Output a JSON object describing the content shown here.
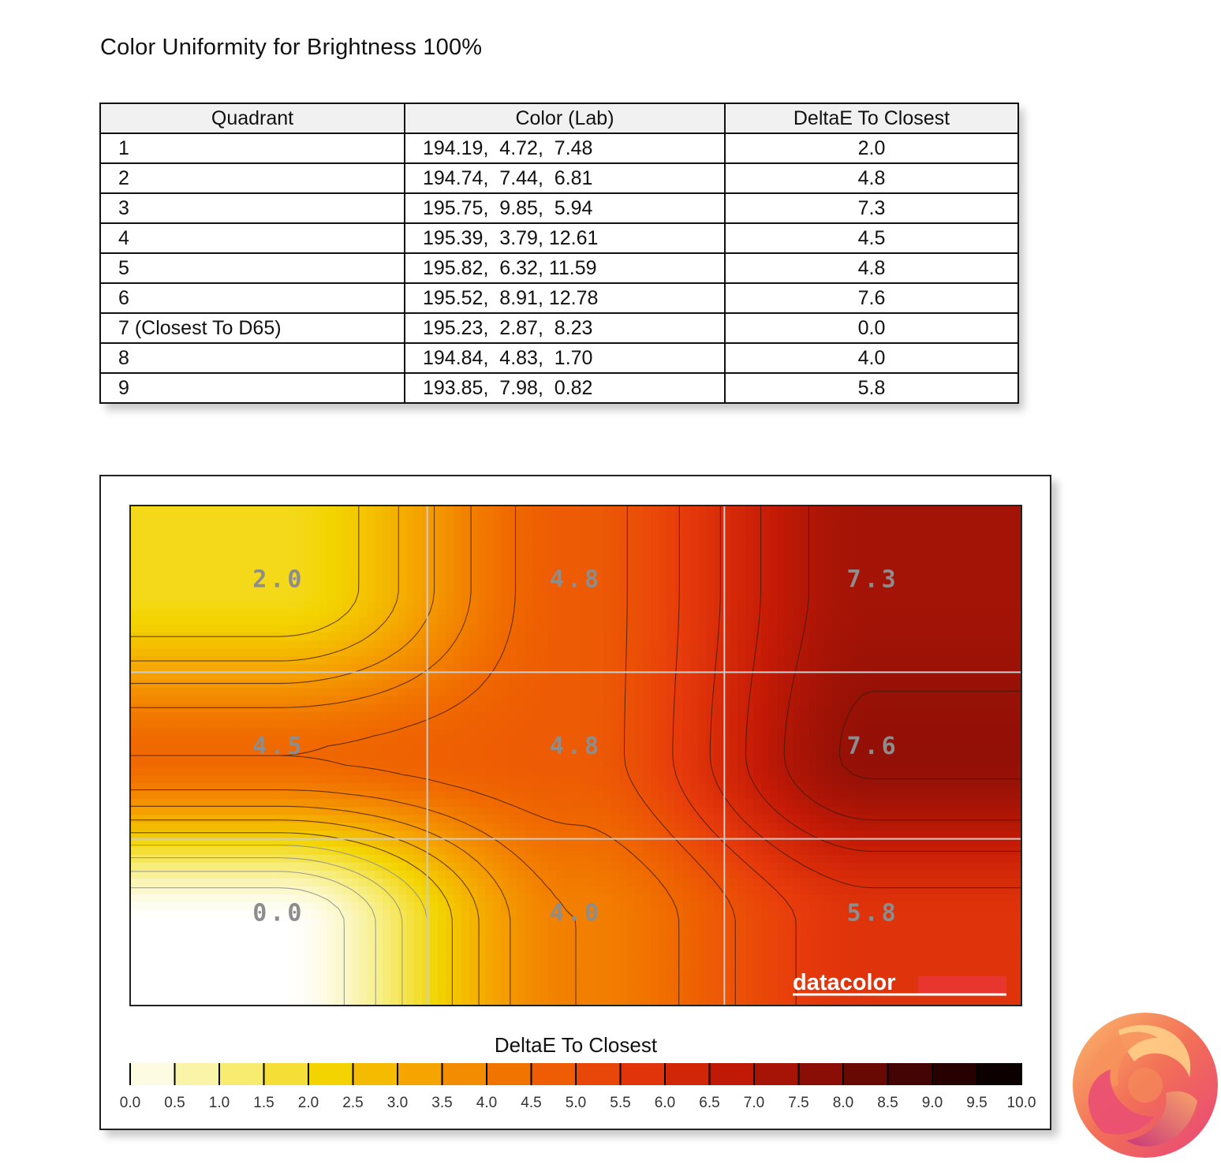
{
  "title": "Color Uniformity for Brightness 100%",
  "table": {
    "headers": [
      "Quadrant",
      "Color (Lab)",
      "DeltaE To Closest"
    ],
    "rows": [
      {
        "quadrant": "1",
        "lab": "194.19,  4.72,  7.48",
        "delta": "2.0"
      },
      {
        "quadrant": "2",
        "lab": "194.74,  7.44,  6.81",
        "delta": "4.8"
      },
      {
        "quadrant": "3",
        "lab": "195.75,  9.85,  5.94",
        "delta": "7.3"
      },
      {
        "quadrant": "4",
        "lab": "195.39,  3.79, 12.61",
        "delta": "4.5"
      },
      {
        "quadrant": "5",
        "lab": "195.82,  6.32, 11.59",
        "delta": "4.8"
      },
      {
        "quadrant": "6",
        "lab": "195.52,  8.91, 12.78",
        "delta": "7.6"
      },
      {
        "quadrant": "7 (Closest To D65)",
        "lab": "195.23,  2.87,  8.23",
        "delta": "0.0"
      },
      {
        "quadrant": "8",
        "lab": "194.84,  4.83,  1.70",
        "delta": "4.0"
      },
      {
        "quadrant": "9",
        "lab": "193.85,  7.98,  0.82",
        "delta": "5.8"
      }
    ]
  },
  "chart_data": {
    "type": "heatmap",
    "grid": [
      [
        2.0,
        4.8,
        7.3
      ],
      [
        4.5,
        4.8,
        7.6
      ],
      [
        0.0,
        4.0,
        5.8
      ]
    ],
    "cell_labels": [
      [
        "2.0",
        "4.8",
        "7.3"
      ],
      [
        "4.5",
        "4.8",
        "7.6"
      ],
      [
        "0.0",
        "4.0",
        "5.8"
      ]
    ],
    "colorbar": {
      "title": "DeltaE To Closest",
      "min": 0,
      "max": 10,
      "step": 0.5,
      "tick_labels": [
        "0.0",
        "0.5",
        "1.0",
        "1.5",
        "2.0",
        "2.5",
        "3.0",
        "3.5",
        "4.0",
        "4.5",
        "5.0",
        "5.5",
        "6.0",
        "6.5",
        "7.0",
        "7.5",
        "8.0",
        "8.5",
        "9.0",
        "9.5",
        "10.0"
      ]
    },
    "contour_interval": 0.5,
    "watermark": "datacolor",
    "colors": {
      "stops": [
        "#ffffff",
        "#f7ee80",
        "#f3d400",
        "#f5a000",
        "#f06a00",
        "#e73a0c",
        "#c41a06",
        "#8a0e06",
        "#3a0202",
        "#000000"
      ],
      "cell_label": "#8d8d8d",
      "grid_lines": "#cccccc",
      "watermark_bar": "#e8352e"
    }
  }
}
